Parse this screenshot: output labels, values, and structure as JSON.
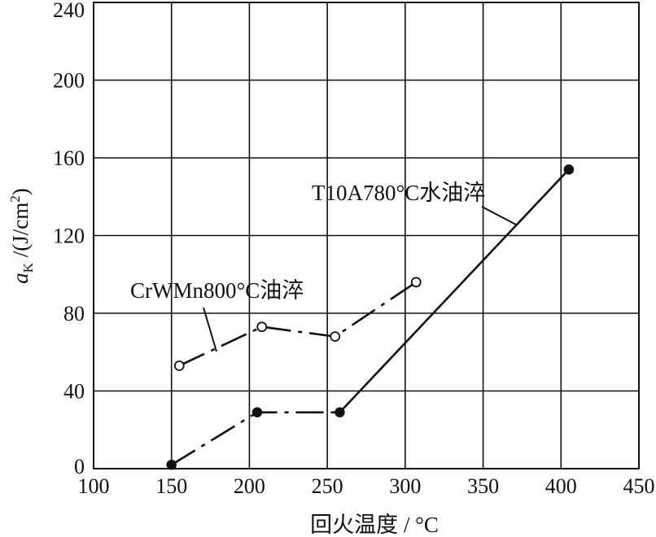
{
  "chart_data": {
    "type": "line",
    "xlabel": "回火温度 / °C",
    "ylabel_main": "a",
    "ylabel_sub": "K",
    "ylabel_unit": " /(J/cm",
    "ylabel_sup": "2",
    "ylabel_close": ")",
    "xlim": [
      100,
      450
    ],
    "ylim": [
      0,
      240
    ],
    "x_ticks": [
      100,
      150,
      200,
      250,
      300,
      350,
      400,
      450
    ],
    "y_ticks": [
      0,
      40,
      80,
      120,
      160,
      200,
      240
    ],
    "grid": true,
    "series": [
      {
        "name": "T10A780°C水油淬",
        "marker": "filled-circle",
        "line_style": "dash-dot then solid",
        "x": [
          150,
          205,
          258,
          405
        ],
        "y": [
          2,
          29,
          29,
          154
        ]
      },
      {
        "name": "CrWMn800°C油淬",
        "marker": "open-circle",
        "line_style": "dash-dot",
        "x": [
          155,
          208,
          255,
          307
        ],
        "y": [
          53,
          73,
          68,
          96
        ]
      }
    ]
  }
}
